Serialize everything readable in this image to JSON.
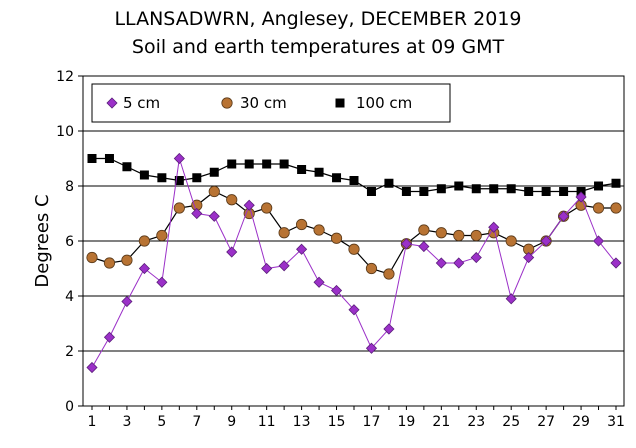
{
  "chart_data": {
    "type": "line",
    "title": "LLANSADWRN, Anglesey, DECEMBER 2019",
    "subtitle": "Soil and earth temperatures at 09 GMT",
    "ylabel": "Degrees C",
    "xlabel": "",
    "ylim": [
      0,
      12
    ],
    "xlim": [
      1,
      31
    ],
    "yticks": [
      0,
      2,
      4,
      6,
      8,
      10,
      12
    ],
    "xticks": [
      1,
      3,
      5,
      7,
      9,
      11,
      13,
      15,
      17,
      19,
      21,
      23,
      25,
      27,
      29,
      31
    ],
    "grid": "horizontal",
    "legend_position": "top-left",
    "x": [
      1,
      2,
      3,
      4,
      5,
      6,
      7,
      8,
      9,
      10,
      11,
      12,
      13,
      14,
      15,
      16,
      17,
      18,
      19,
      20,
      21,
      22,
      23,
      24,
      25,
      26,
      27,
      28,
      29,
      30,
      31
    ],
    "series": [
      {
        "name": "5 cm",
        "marker": "diamond",
        "color": "#9b30c8",
        "line_color": "#9b30c8",
        "values": [
          1.4,
          2.5,
          3.8,
          5.0,
          4.5,
          9.0,
          7.0,
          6.9,
          5.6,
          7.3,
          5.0,
          5.1,
          5.7,
          4.5,
          4.2,
          3.5,
          2.1,
          2.8,
          5.9,
          5.8,
          5.2,
          5.2,
          5.4,
          6.5,
          3.9,
          5.4,
          6.0,
          6.9,
          7.6,
          6.0,
          5.2
        ]
      },
      {
        "name": "30 cm",
        "marker": "circle",
        "color": "#b87333",
        "line_color": "#000000",
        "values": [
          5.4,
          5.2,
          5.3,
          6.0,
          6.2,
          7.2,
          7.3,
          7.8,
          7.5,
          7.0,
          7.2,
          6.3,
          6.6,
          6.4,
          6.1,
          5.7,
          5.0,
          4.8,
          5.9,
          6.4,
          6.3,
          6.2,
          6.2,
          6.3,
          6.0,
          5.7,
          6.0,
          6.9,
          7.3,
          7.2,
          7.2
        ]
      },
      {
        "name": "100 cm",
        "marker": "square",
        "color": "#000000",
        "line_color": "#000000",
        "values": [
          9.0,
          9.0,
          8.7,
          8.4,
          8.3,
          8.2,
          8.3,
          8.5,
          8.8,
          8.8,
          8.8,
          8.8,
          8.6,
          8.5,
          8.3,
          8.2,
          7.8,
          8.1,
          7.8,
          7.8,
          7.9,
          8.0,
          7.9,
          7.9,
          7.9,
          7.8,
          7.8,
          7.8,
          7.8,
          8.0,
          8.1
        ]
      }
    ]
  }
}
